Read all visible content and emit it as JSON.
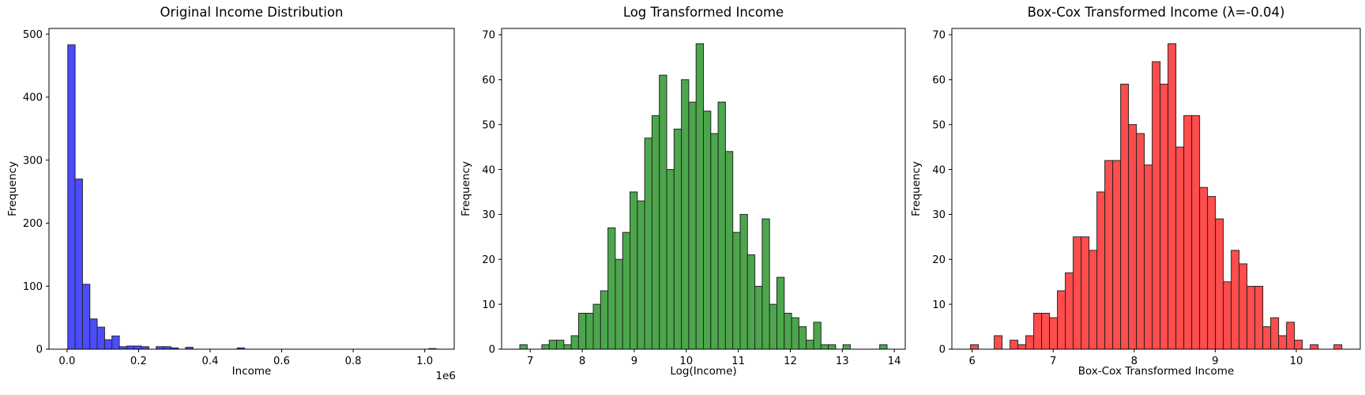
{
  "chart_data": [
    {
      "id": "original",
      "type": "bar",
      "subtype": "histogram",
      "title": "Original Income Distribution",
      "xlabel": "Income",
      "ylabel": "Frequency",
      "x_offset_label": "1e6",
      "bar_color": "#4c4cff",
      "edge_color": "#262626",
      "grid": false,
      "legend": null,
      "xlim": [
        -0.0505,
        1.0825
      ],
      "ylim": [
        0,
        509
      ],
      "xticks": [
        0.0,
        0.2,
        0.4,
        0.6,
        0.8,
        1.0
      ],
      "xtick_labels": [
        "0.0",
        "0.2",
        "0.4",
        "0.6",
        "0.8",
        "1.0"
      ],
      "yticks": [
        0,
        100,
        200,
        300,
        400,
        500
      ],
      "ytick_labels": [
        "0",
        "100",
        "200",
        "300",
        "400",
        "500"
      ],
      "x_units": "millions (1e6)",
      "bin_start": 0.002,
      "bin_width": 0.0206,
      "counts": [
        483,
        270,
        103,
        48,
        35,
        15,
        21,
        4,
        5,
        5,
        4,
        0,
        4,
        4,
        2,
        0,
        3,
        0,
        0,
        0,
        0,
        0,
        0,
        2,
        0,
        0,
        0,
        0,
        0,
        0,
        0,
        0,
        0,
        0,
        0,
        0,
        0,
        0,
        0,
        0,
        0,
        0,
        0,
        0,
        0,
        0,
        0,
        0,
        0,
        1
      ]
    },
    {
      "id": "log",
      "type": "bar",
      "subtype": "histogram",
      "title": "Log Transformed Income",
      "xlabel": "Log(Income)",
      "ylabel": "Frequency",
      "x_offset_label": "",
      "bar_color": "#4ca64c",
      "edge_color": "#262626",
      "grid": false,
      "legend": null,
      "xlim": [
        6.45,
        14.21
      ],
      "ylim": [
        0,
        71.4
      ],
      "xticks": [
        7,
        8,
        9,
        10,
        11,
        12,
        13,
        14
      ],
      "xtick_labels": [
        "7",
        "8",
        "9",
        "10",
        "11",
        "12",
        "13",
        "14"
      ],
      "yticks": [
        0,
        10,
        20,
        30,
        40,
        50,
        60,
        70
      ],
      "ytick_labels": [
        "0",
        "10",
        "20",
        "30",
        "40",
        "50",
        "60",
        "70"
      ],
      "bin_start": 6.8,
      "bin_width": 0.1412,
      "counts": [
        1,
        0,
        0,
        1,
        2,
        2,
        1,
        3,
        8,
        8,
        10,
        13,
        27,
        20,
        26,
        35,
        33,
        47,
        52,
        61,
        40,
        49,
        60,
        55,
        68,
        53,
        48,
        55,
        44,
        26,
        30,
        21,
        14,
        29,
        10,
        16,
        8,
        7,
        5,
        2,
        6,
        1,
        1,
        0,
        1,
        0,
        0,
        0,
        0,
        1
      ]
    },
    {
      "id": "boxcox",
      "type": "bar",
      "subtype": "histogram",
      "title": "Box-Cox Transformed Income (λ=-0.04)",
      "xlabel": "Box-Cox Transformed Income",
      "ylabel": "Frequency",
      "x_offset_label": "",
      "bar_color": "#ff4c4c",
      "edge_color": "#262626",
      "grid": false,
      "legend": null,
      "xlim": [
        5.75,
        10.79
      ],
      "ylim": [
        0,
        71.4
      ],
      "xticks": [
        6,
        7,
        8,
        9,
        10
      ],
      "xtick_labels": [
        "6",
        "7",
        "8",
        "9",
        "10"
      ],
      "yticks": [
        0,
        10,
        20,
        30,
        40,
        50,
        60,
        70
      ],
      "ytick_labels": [
        "0",
        "10",
        "20",
        "30",
        "40",
        "50",
        "60",
        "70"
      ],
      "bin_start": 5.98,
      "bin_width": 0.0975,
      "counts": [
        1,
        0,
        0,
        3,
        0,
        2,
        1,
        3,
        8,
        8,
        7,
        13,
        17,
        25,
        25,
        22,
        35,
        42,
        42,
        59,
        50,
        48,
        41,
        64,
        59,
        68,
        45,
        52,
        52,
        36,
        34,
        29,
        15,
        22,
        19,
        14,
        14,
        5,
        7,
        3,
        6,
        2,
        0,
        1,
        0,
        0,
        1
      ]
    }
  ]
}
